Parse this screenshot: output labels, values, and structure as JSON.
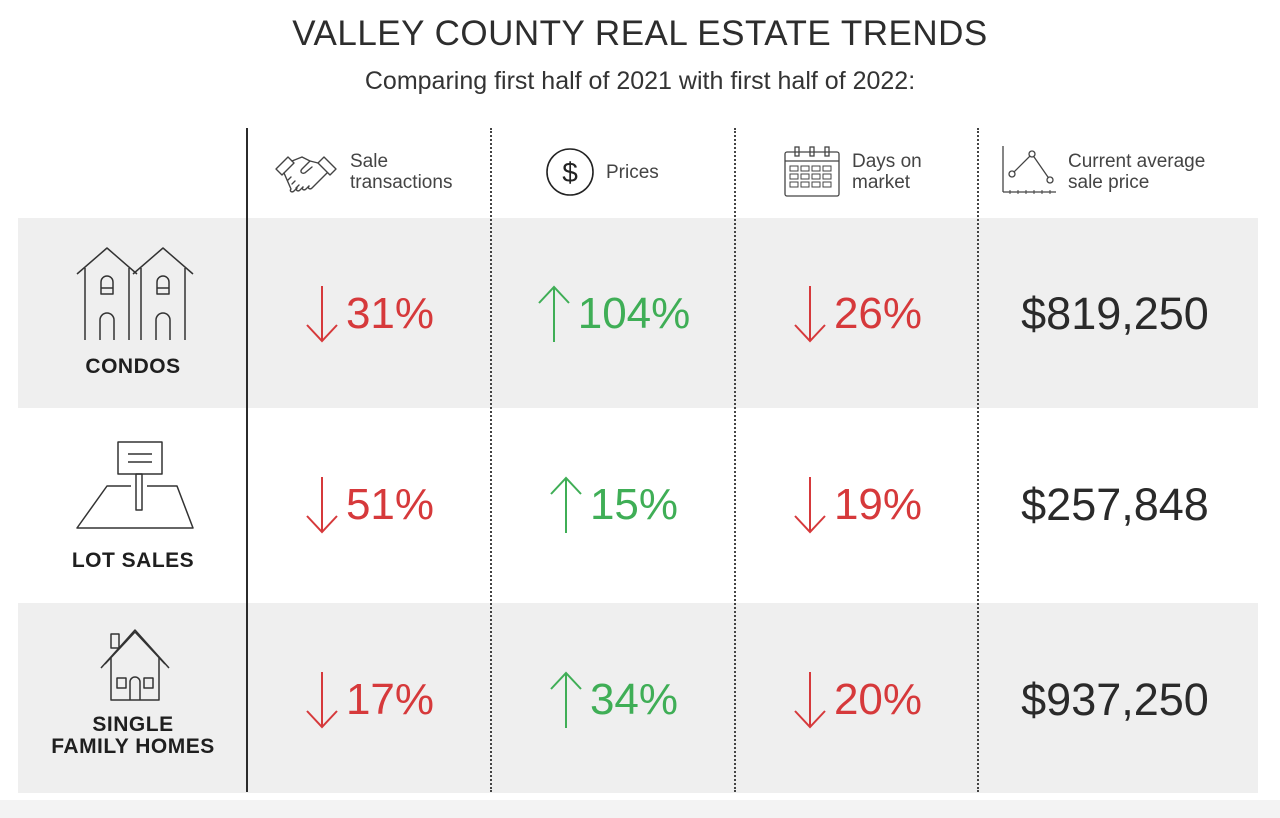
{
  "header": {
    "title": "VALLEY COUNTY REAL ESTATE TRENDS",
    "subtitle": "Comparing first half of 2021 with first half of 2022:"
  },
  "columns": [
    {
      "icon": "handshake-icon",
      "label": "Sale transactions"
    },
    {
      "icon": "dollar-circle-icon",
      "label": "Prices"
    },
    {
      "icon": "calendar-icon",
      "label": "Days on market"
    },
    {
      "icon": "line-chart-icon",
      "label": "Current average sale price"
    }
  ],
  "rows": [
    {
      "icon": "condos-icon",
      "label": "CONDOS",
      "sale_transactions": "31%",
      "prices": "104%",
      "days_on_market": "26%",
      "avg_price": "$819,250"
    },
    {
      "icon": "lot-sign-icon",
      "label": "LOT SALES",
      "sale_transactions": "51%",
      "prices": "15%",
      "days_on_market": "19%",
      "avg_price": "$257,848"
    },
    {
      "icon": "house-icon",
      "label_line1": "SINGLE",
      "label_line2": "FAMILY HOMES",
      "sale_transactions": "17%",
      "prices": "34%",
      "days_on_market": "20%",
      "avg_price": "$937,250"
    }
  ],
  "colors": {
    "down": "#d6393b",
    "up": "#3fae56",
    "band": "#efefef"
  }
}
